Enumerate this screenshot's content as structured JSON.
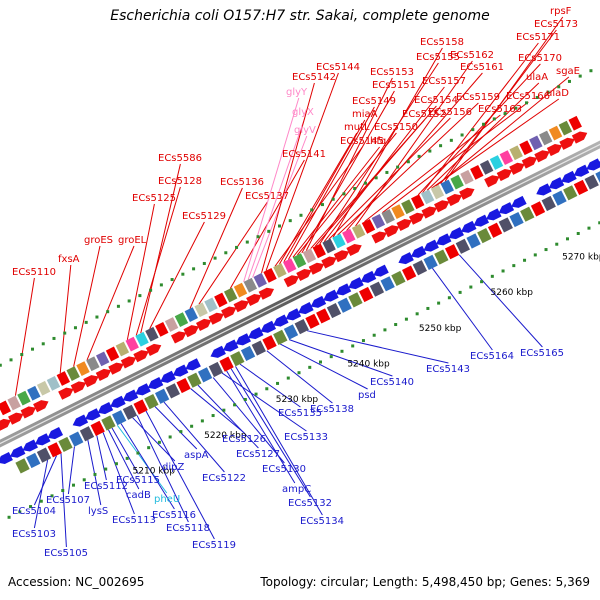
{
  "title": "Escherichia coli O157:H7 str. Sakai, complete genome",
  "accession": "Accession: NC_002695",
  "summary": "Topology: circular; Length: 5,498,450 bp; Genes: 5,369",
  "colors": {
    "forward_label": "#e00000",
    "reverse_label": "#1a1acc",
    "rna_label": "#ff88c8",
    "pseudo_label": "#22bbdd",
    "backbone": "#8a8a8a",
    "tick_green": "#2e8b2e"
  },
  "bp_ticks": [
    "5210 kbp",
    "5220 kbp",
    "5230 kbp",
    "5240 kbp",
    "5250 kbp",
    "5260 kbp",
    "5270 kbp"
  ],
  "forward_labels": [
    "ECs5110",
    "fxsA",
    "groES",
    "groEL",
    "ECs5125",
    "ECs5128",
    "ECs5586",
    "ECs5129",
    "ECs5136",
    "ECs5137",
    "ECs5141",
    "glyY",
    "glyX",
    "glyV",
    "ECs5144",
    "ECs5142",
    "ECs5145",
    "mutL",
    "miaA",
    "ECs5149",
    "hfq",
    "ECs5150",
    "ECs5151",
    "ECs5153",
    "ECs5152",
    "ECs5154",
    "ECs5155",
    "ECs5157",
    "ECs5158",
    "ECs5156",
    "ECs5159",
    "ECs5161",
    "ECs5162",
    "ECs5163",
    "ECs5166",
    "ECs5170",
    "ECs5171",
    "ulaA",
    "ulaD",
    "sgaE",
    "ECs5173",
    "rpsF"
  ],
  "reverse_labels": [
    "ECs5103",
    "ECs5104",
    "ECs5105",
    "ECs5107",
    "lysS",
    "ECs5112",
    "ECs5113",
    "cadB",
    "ECs5115",
    "pheU",
    "ECs5116",
    "dipZ",
    "ECs5118",
    "ECs5119",
    "aspA",
    "ECs5122",
    "ECs5126",
    "ECs5127",
    "ECs5130",
    "ECs5133",
    "ampC",
    "ECs5132",
    "ECs5134",
    "ECs5135",
    "ECs5138",
    "psd",
    "ECs5140",
    "ECs5143",
    "ECs5164",
    "ECs5165"
  ]
}
